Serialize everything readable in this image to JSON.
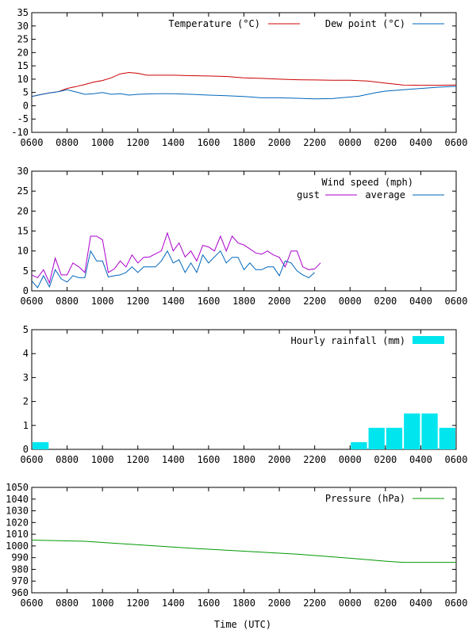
{
  "xlabel": "Time (UTC)",
  "x_ticks": [
    "0600",
    "0800",
    "1000",
    "1200",
    "1400",
    "1600",
    "1800",
    "2000",
    "2200",
    "0000",
    "0200",
    "0400",
    "0600"
  ],
  "chart_data": [
    {
      "type": "line",
      "ylim": [
        -10,
        35
      ],
      "yticks": [
        -10,
        -5,
        0,
        5,
        10,
        15,
        20,
        25,
        30,
        35
      ],
      "series": [
        {
          "name": "Temperature (°C)",
          "color": "#cc0000",
          "points": [
            [
              0,
              3.5
            ],
            [
              0.5,
              4.2
            ],
            [
              1,
              4.8
            ],
            [
              1.5,
              5.3
            ],
            [
              2,
              6.5
            ],
            [
              2.5,
              7.2
            ],
            [
              3,
              8.0
            ],
            [
              3.5,
              8.9
            ],
            [
              4,
              9.5
            ],
            [
              4.5,
              10.5
            ],
            [
              5,
              12.0
            ],
            [
              5.5,
              12.5
            ],
            [
              6,
              12.2
            ],
            [
              6.5,
              11.5
            ],
            [
              7,
              11.5
            ],
            [
              8,
              11.5
            ],
            [
              9,
              11.3
            ],
            [
              10,
              11.2
            ],
            [
              11,
              11.0
            ],
            [
              12,
              10.5
            ],
            [
              13,
              10.3
            ],
            [
              14,
              10.0
            ],
            [
              15,
              9.8
            ],
            [
              16,
              9.7
            ],
            [
              17,
              9.6
            ],
            [
              18,
              9.6
            ],
            [
              19,
              9.3
            ],
            [
              20,
              8.5
            ],
            [
              21,
              7.8
            ],
            [
              22,
              7.7
            ],
            [
              23,
              7.7
            ],
            [
              24,
              7.8
            ]
          ]
        },
        {
          "name": "Dew point (°C)",
          "color": "#0066bb",
          "points": [
            [
              0,
              3.5
            ],
            [
              0.5,
              4.2
            ],
            [
              1,
              4.8
            ],
            [
              1.5,
              5.3
            ],
            [
              2,
              6.0
            ],
            [
              2.5,
              5.2
            ],
            [
              3,
              4.3
            ],
            [
              3.5,
              4.5
            ],
            [
              4,
              5.0
            ],
            [
              4.5,
              4.3
            ],
            [
              5,
              4.5
            ],
            [
              5.5,
              4.0
            ],
            [
              6,
              4.3
            ],
            [
              7,
              4.5
            ],
            [
              8,
              4.5
            ],
            [
              9,
              4.3
            ],
            [
              10,
              4.0
            ],
            [
              11,
              3.8
            ],
            [
              12,
              3.5
            ],
            [
              13,
              3.0
            ],
            [
              14,
              3.0
            ],
            [
              15,
              2.8
            ],
            [
              16,
              2.6
            ],
            [
              17,
              2.7
            ],
            [
              17.5,
              3.0
            ],
            [
              18,
              3.3
            ],
            [
              18.5,
              3.6
            ],
            [
              19,
              4.3
            ],
            [
              19.5,
              5.0
            ],
            [
              20,
              5.5
            ],
            [
              21,
              6.0
            ],
            [
              22,
              6.5
            ],
            [
              23,
              7.0
            ],
            [
              24,
              7.3
            ]
          ]
        }
      ]
    },
    {
      "type": "line",
      "ylim": [
        0,
        30
      ],
      "yticks": [
        0,
        5,
        10,
        15,
        20,
        25,
        30
      ],
      "header": "Wind speed (mph)",
      "series": [
        {
          "name": "gust",
          "color": "#aa00cc",
          "points": [
            [
              0,
              4.0
            ],
            [
              0.33,
              3.3
            ],
            [
              0.67,
              5.3
            ],
            [
              1,
              2.0
            ],
            [
              1.33,
              8.2
            ],
            [
              1.67,
              4.0
            ],
            [
              2,
              4.0
            ],
            [
              2.33,
              7.0
            ],
            [
              2.67,
              6.0
            ],
            [
              3,
              4.6
            ],
            [
              3.33,
              13.7
            ],
            [
              3.67,
              13.7
            ],
            [
              4,
              12.8
            ],
            [
              4.33,
              4.6
            ],
            [
              4.67,
              5.5
            ],
            [
              5,
              7.5
            ],
            [
              5.33,
              6.0
            ],
            [
              5.67,
              9.0
            ],
            [
              6,
              7.0
            ],
            [
              6.33,
              8.4
            ],
            [
              6.67,
              8.5
            ],
            [
              7,
              9.3
            ],
            [
              7.33,
              10.0
            ],
            [
              7.67,
              14.5
            ],
            [
              8,
              10.0
            ],
            [
              8.33,
              12.0
            ],
            [
              8.67,
              8.5
            ],
            [
              9,
              10.0
            ],
            [
              9.33,
              7.5
            ],
            [
              9.67,
              11.4
            ],
            [
              10,
              11.0
            ],
            [
              10.33,
              10.0
            ],
            [
              10.67,
              13.7
            ],
            [
              11,
              10.0
            ],
            [
              11.33,
              13.7
            ],
            [
              11.67,
              12.0
            ],
            [
              12,
              11.5
            ],
            [
              12.33,
              10.5
            ],
            [
              12.67,
              9.5
            ],
            [
              13,
              9.2
            ],
            [
              13.33,
              10.0
            ],
            [
              13.67,
              9.0
            ],
            [
              14,
              8.4
            ],
            [
              14.33,
              6.0
            ],
            [
              14.67,
              10.0
            ],
            [
              15,
              10.0
            ],
            [
              15.33,
              6.0
            ],
            [
              15.67,
              5.3
            ],
            [
              16,
              5.5
            ],
            [
              16.33,
              7.0
            ]
          ]
        },
        {
          "name": "average",
          "color": "#0066bb",
          "points": [
            [
              0,
              2.5
            ],
            [
              0.33,
              0.8
            ],
            [
              0.67,
              3.8
            ],
            [
              1,
              1.0
            ],
            [
              1.33,
              5.3
            ],
            [
              1.67,
              3.0
            ],
            [
              2,
              2.2
            ],
            [
              2.33,
              3.8
            ],
            [
              2.67,
              3.3
            ],
            [
              3,
              3.3
            ],
            [
              3.33,
              10.0
            ],
            [
              3.67,
              7.5
            ],
            [
              4,
              7.5
            ],
            [
              4.33,
              3.5
            ],
            [
              4.67,
              3.8
            ],
            [
              5,
              4.0
            ],
            [
              5.33,
              4.6
            ],
            [
              5.67,
              6.0
            ],
            [
              6,
              4.6
            ],
            [
              6.33,
              6.0
            ],
            [
              6.67,
              6.0
            ],
            [
              7,
              6.0
            ],
            [
              7.33,
              7.5
            ],
            [
              7.67,
              10.0
            ],
            [
              8,
              7.0
            ],
            [
              8.33,
              7.8
            ],
            [
              8.67,
              4.6
            ],
            [
              9,
              7.0
            ],
            [
              9.33,
              4.6
            ],
            [
              9.67,
              9.0
            ],
            [
              10,
              7.0
            ],
            [
              10.33,
              8.5
            ],
            [
              10.67,
              10.0
            ],
            [
              11,
              7.0
            ],
            [
              11.33,
              8.4
            ],
            [
              11.67,
              8.4
            ],
            [
              12,
              5.3
            ],
            [
              12.33,
              7.0
            ],
            [
              12.67,
              5.3
            ],
            [
              13,
              5.3
            ],
            [
              13.33,
              6.0
            ],
            [
              13.67,
              6.0
            ],
            [
              14,
              3.8
            ],
            [
              14.33,
              7.5
            ],
            [
              14.67,
              7.0
            ],
            [
              15,
              5.0
            ],
            [
              15.33,
              4.0
            ],
            [
              15.67,
              3.3
            ],
            [
              16,
              4.6
            ]
          ]
        }
      ]
    },
    {
      "type": "bar",
      "ylim": [
        0,
        5
      ],
      "yticks": [
        0,
        1,
        2,
        3,
        4,
        5
      ],
      "series": [
        {
          "name": "Hourly rainfall (mm)",
          "color": "#00e5ee",
          "bars": [
            [
              0,
              0.3
            ],
            [
              18,
              0.3
            ],
            [
              19,
              0.9
            ],
            [
              20,
              0.9
            ],
            [
              21,
              1.5
            ],
            [
              22,
              1.5
            ],
            [
              23,
              0.9
            ]
          ]
        }
      ]
    },
    {
      "type": "line",
      "ylim": [
        960,
        1050
      ],
      "yticks": [
        960,
        970,
        980,
        990,
        1000,
        1010,
        1020,
        1030,
        1040,
        1050
      ],
      "series": [
        {
          "name": "Pressure (hPa)",
          "color": "#009900",
          "points": [
            [
              0,
              1005
            ],
            [
              3,
              1004
            ],
            [
              6,
              1001
            ],
            [
              9,
              998
            ],
            [
              12,
              995.5
            ],
            [
              15,
              993
            ],
            [
              18,
              989.5
            ],
            [
              20,
              987
            ],
            [
              21,
              986
            ],
            [
              24,
              986
            ]
          ]
        }
      ]
    }
  ]
}
